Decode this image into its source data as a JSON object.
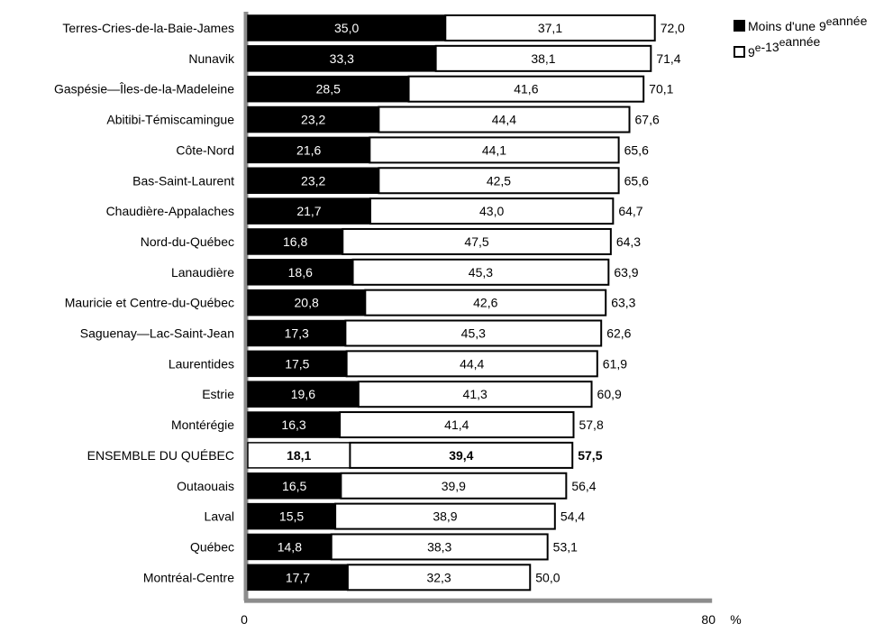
{
  "chart_data": {
    "type": "bar",
    "orientation": "horizontal",
    "stacked": true,
    "categories": [
      "Terres-Cries-de-la-Baie-James",
      "Nunavik",
      "Gaspésie—Îles-de-la-Madeleine",
      "Abitibi-Témiscamingue",
      "Côte-Nord",
      "Bas-Saint-Laurent",
      "Chaudière-Appalaches",
      "Nord-du-Québec",
      "Lanaudière",
      "Mauricie et Centre-du-Québec",
      "Saguenay—Lac-Saint-Jean",
      "Laurentides",
      "Estrie",
      "Montérégie",
      "ENSEMBLE DU QUÉBEC",
      "Outaouais",
      "Laval",
      "Québec",
      "Montréal-Centre"
    ],
    "highlight_category": "ENSEMBLE DU QUÉBEC",
    "series": [
      {
        "name": "Moins d'une 9e année",
        "color": "#000000",
        "values": [
          35.0,
          33.3,
          28.5,
          23.2,
          21.6,
          23.2,
          21.7,
          16.8,
          18.6,
          20.8,
          17.3,
          17.5,
          19.6,
          16.3,
          18.1,
          16.5,
          15.5,
          14.8,
          17.7
        ],
        "labels": [
          "35,0",
          "33,3",
          "28,5",
          "23,2",
          "21,6",
          "23,2",
          "21,7",
          "16,8",
          "18,6",
          "20,8",
          "17,3",
          "17,5",
          "19,6",
          "16,3",
          "18,1",
          "16,5",
          "15,5",
          "14,8",
          "17,7"
        ]
      },
      {
        "name": "9e-13e année",
        "color": "#ffffff",
        "values": [
          37.1,
          38.1,
          41.6,
          44.4,
          44.1,
          42.5,
          43.0,
          47.5,
          45.3,
          42.6,
          45.3,
          44.4,
          41.3,
          41.4,
          39.4,
          39.9,
          38.9,
          38.3,
          32.3
        ],
        "labels": [
          "37,1",
          "38,1",
          "41,6",
          "44,4",
          "44,1",
          "42,5",
          "43,0",
          "47,5",
          "45,3",
          "42,6",
          "45,3",
          "44,4",
          "41,3",
          "41,4",
          "39,4",
          "39,9",
          "38,9",
          "38,3",
          "32,3"
        ]
      }
    ],
    "totals": [
      72.0,
      71.4,
      70.1,
      67.6,
      65.6,
      65.6,
      64.7,
      64.3,
      63.9,
      63.3,
      62.6,
      61.9,
      60.9,
      57.8,
      57.5,
      56.4,
      54.4,
      53.1,
      50.0
    ],
    "total_labels": [
      "72,0",
      "71,4",
      "70,1",
      "67,6",
      "65,6",
      "65,6",
      "64,7",
      "64,3",
      "63,9",
      "63,3",
      "62,6",
      "61,9",
      "60,9",
      "57,8",
      "57,5",
      "56,4",
      "54,4",
      "53,1",
      "50,0"
    ],
    "xlim": [
      0,
      80
    ],
    "x_tick_labels": [
      "0",
      "80"
    ],
    "x_unit": "%",
    "grid": false,
    "legend_position": "top-right",
    "legend": [
      {
        "prefix": "Moins d'une 9",
        "sup": "e",
        "suffix": "année"
      },
      {
        "prefix": "9",
        "sup": "e",
        "mid": "-13",
        "sup2": "e",
        "suffix": "année"
      }
    ],
    "colors": {
      "axis": "#8c8c8c",
      "bar_border": "#000000",
      "text": "#000000"
    }
  }
}
